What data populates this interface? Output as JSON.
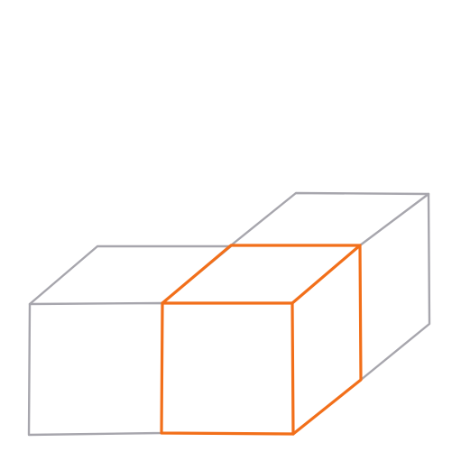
{
  "colors": {
    "background": "#ffffff",
    "outline": "#a7a6ad",
    "highlight": "#f26f1a"
  },
  "cubes": [
    {
      "role": "left-front-cube",
      "highlighted": false
    },
    {
      "role": "back-right-cube",
      "highlighted": false
    },
    {
      "role": "center-front-cube",
      "highlighted": true
    }
  ]
}
